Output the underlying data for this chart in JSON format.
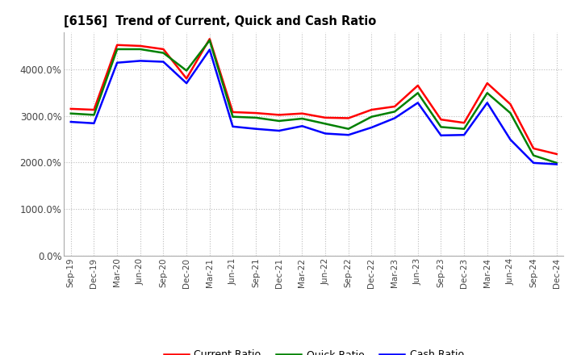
{
  "title": "[6156]  Trend of Current, Quick and Cash Ratio",
  "labels": [
    "Sep-19",
    "Dec-19",
    "Mar-20",
    "Jun-20",
    "Sep-20",
    "Dec-20",
    "Mar-21",
    "Jun-21",
    "Sep-21",
    "Dec-21",
    "Mar-22",
    "Jun-22",
    "Sep-22",
    "Dec-22",
    "Mar-23",
    "Jun-23",
    "Sep-23",
    "Dec-23",
    "Mar-24",
    "Jun-24",
    "Sep-24",
    "Dec-24"
  ],
  "current_ratio": [
    3150,
    3130,
    4520,
    4500,
    4430,
    3800,
    4650,
    3080,
    3060,
    3020,
    3050,
    2960,
    2950,
    3130,
    3200,
    3650,
    2920,
    2850,
    3700,
    3250,
    2300,
    2180
  ],
  "quick_ratio": [
    3050,
    3020,
    4430,
    4430,
    4350,
    3970,
    4620,
    2980,
    2960,
    2890,
    2940,
    2830,
    2720,
    2980,
    3090,
    3490,
    2760,
    2720,
    3490,
    3060,
    2150,
    1990
  ],
  "cash_ratio": [
    2870,
    2840,
    4140,
    4180,
    4160,
    3700,
    4420,
    2770,
    2720,
    2680,
    2780,
    2620,
    2590,
    2750,
    2950,
    3280,
    2580,
    2590,
    3280,
    2490,
    1990,
    1960
  ],
  "current_color": "#FF0000",
  "quick_color": "#008000",
  "cash_color": "#0000FF",
  "line_width": 1.8,
  "ylim": [
    0,
    4800
  ],
  "yticks": [
    0,
    1000,
    2000,
    3000,
    4000
  ],
  "ytick_labels": [
    "0.0%",
    "1000.0%",
    "2000.0%",
    "3000.0%",
    "4000.0%"
  ],
  "bg_color": "#ffffff",
  "plot_bg_color": "#ffffff",
  "grid_color": "#bbbbbb",
  "legend_entries": [
    "Current Ratio",
    "Quick Ratio",
    "Cash Ratio"
  ]
}
